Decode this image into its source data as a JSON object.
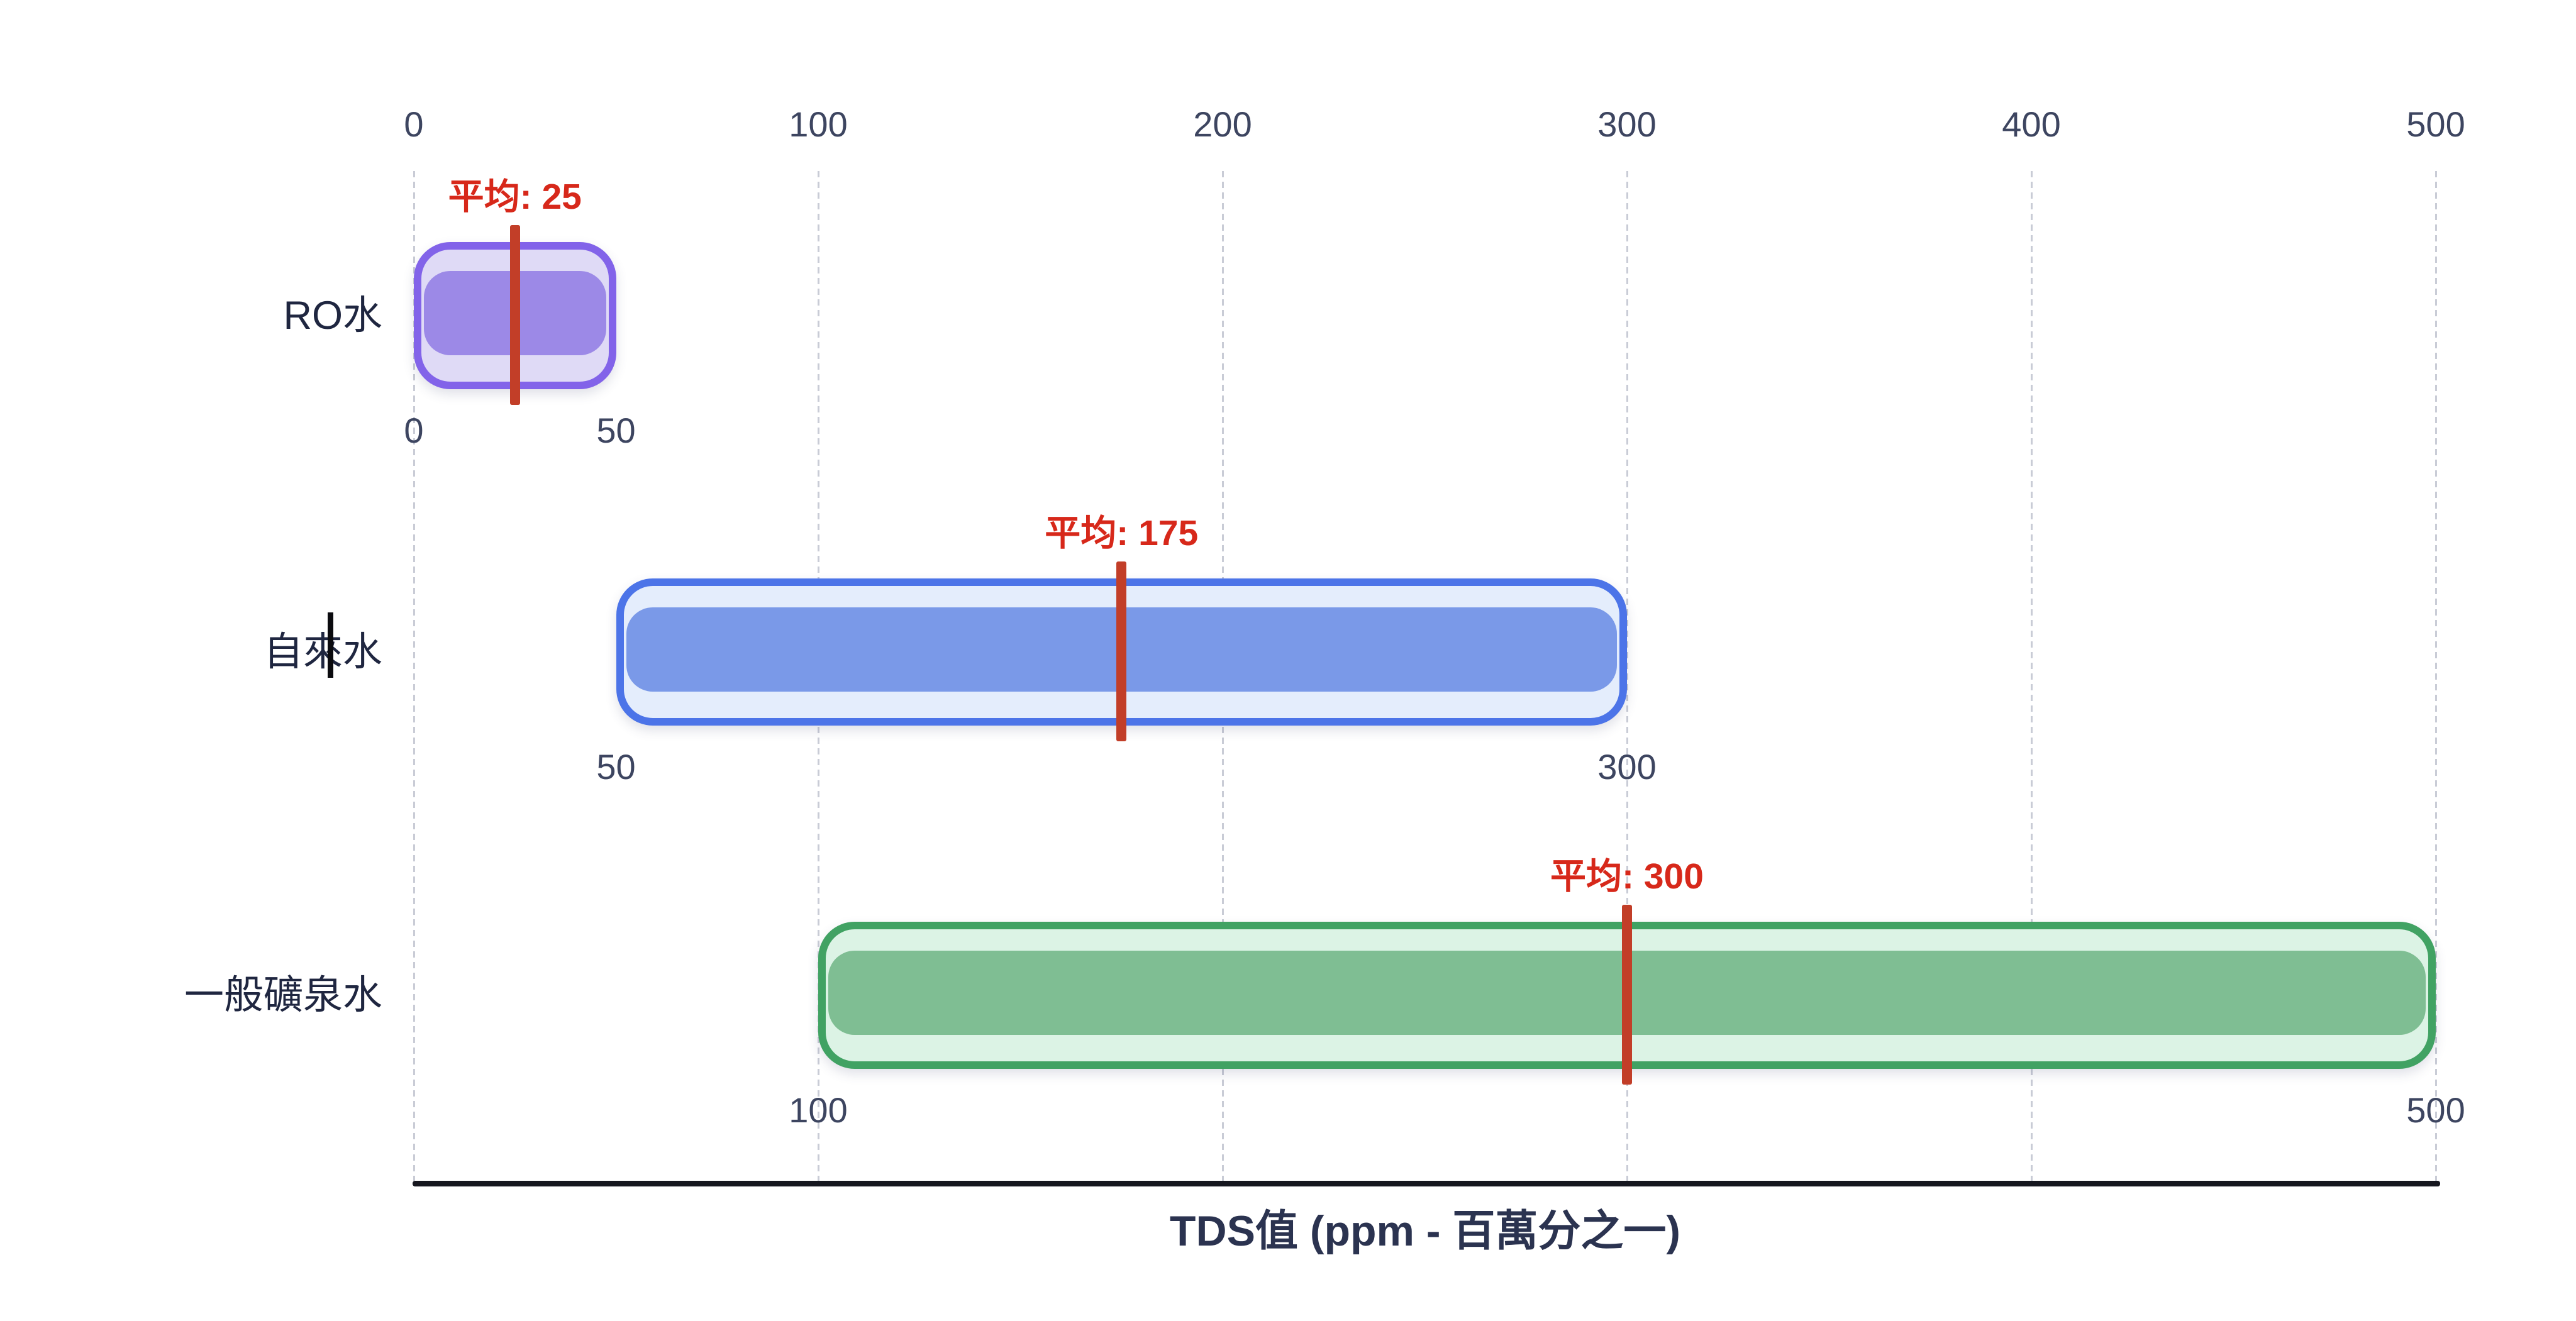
{
  "chart_data": {
    "type": "bar",
    "orientation": "horizontal-range",
    "title": "TDS值 (ppm - 百萬分之一)",
    "xlabel": "TDS值 (ppm - 百萬分之一)",
    "ylabel": "",
    "axis": {
      "min": 0,
      "max": 500,
      "ticks": [
        0,
        100,
        200,
        300,
        400,
        500
      ],
      "tick_position": "top",
      "grid": true
    },
    "avg_label_prefix": "平均: ",
    "categories": [
      "RO水",
      "自來水",
      "一般礦泉水"
    ],
    "series": [
      {
        "label": "RO水",
        "min": 0,
        "max": 50,
        "avg": 25,
        "colors": {
          "border": "#8263E9",
          "fill": "#DFDAF6",
          "band": "#9C89E7"
        }
      },
      {
        "label": "自來水",
        "min": 50,
        "max": 300,
        "avg": 175,
        "colors": {
          "border": "#4C74E8",
          "fill": "#E4EDFC",
          "band": "#7A99E8"
        }
      },
      {
        "label": "一般礦泉水",
        "min": 100,
        "max": 500,
        "avg": 300,
        "colors": {
          "border": "#41A263",
          "fill": "#DCF3E5",
          "band": "#7FBE93"
        }
      }
    ],
    "accent_colors": {
      "avg_line": "#C23E28",
      "avg_text": "#D7281A",
      "axis_line": "#16171F",
      "gridline": "#C9CCD6",
      "tick_text": "#3D4560",
      "category_text": "#1F2640",
      "title_text": "#2B3350"
    },
    "legend": false
  }
}
